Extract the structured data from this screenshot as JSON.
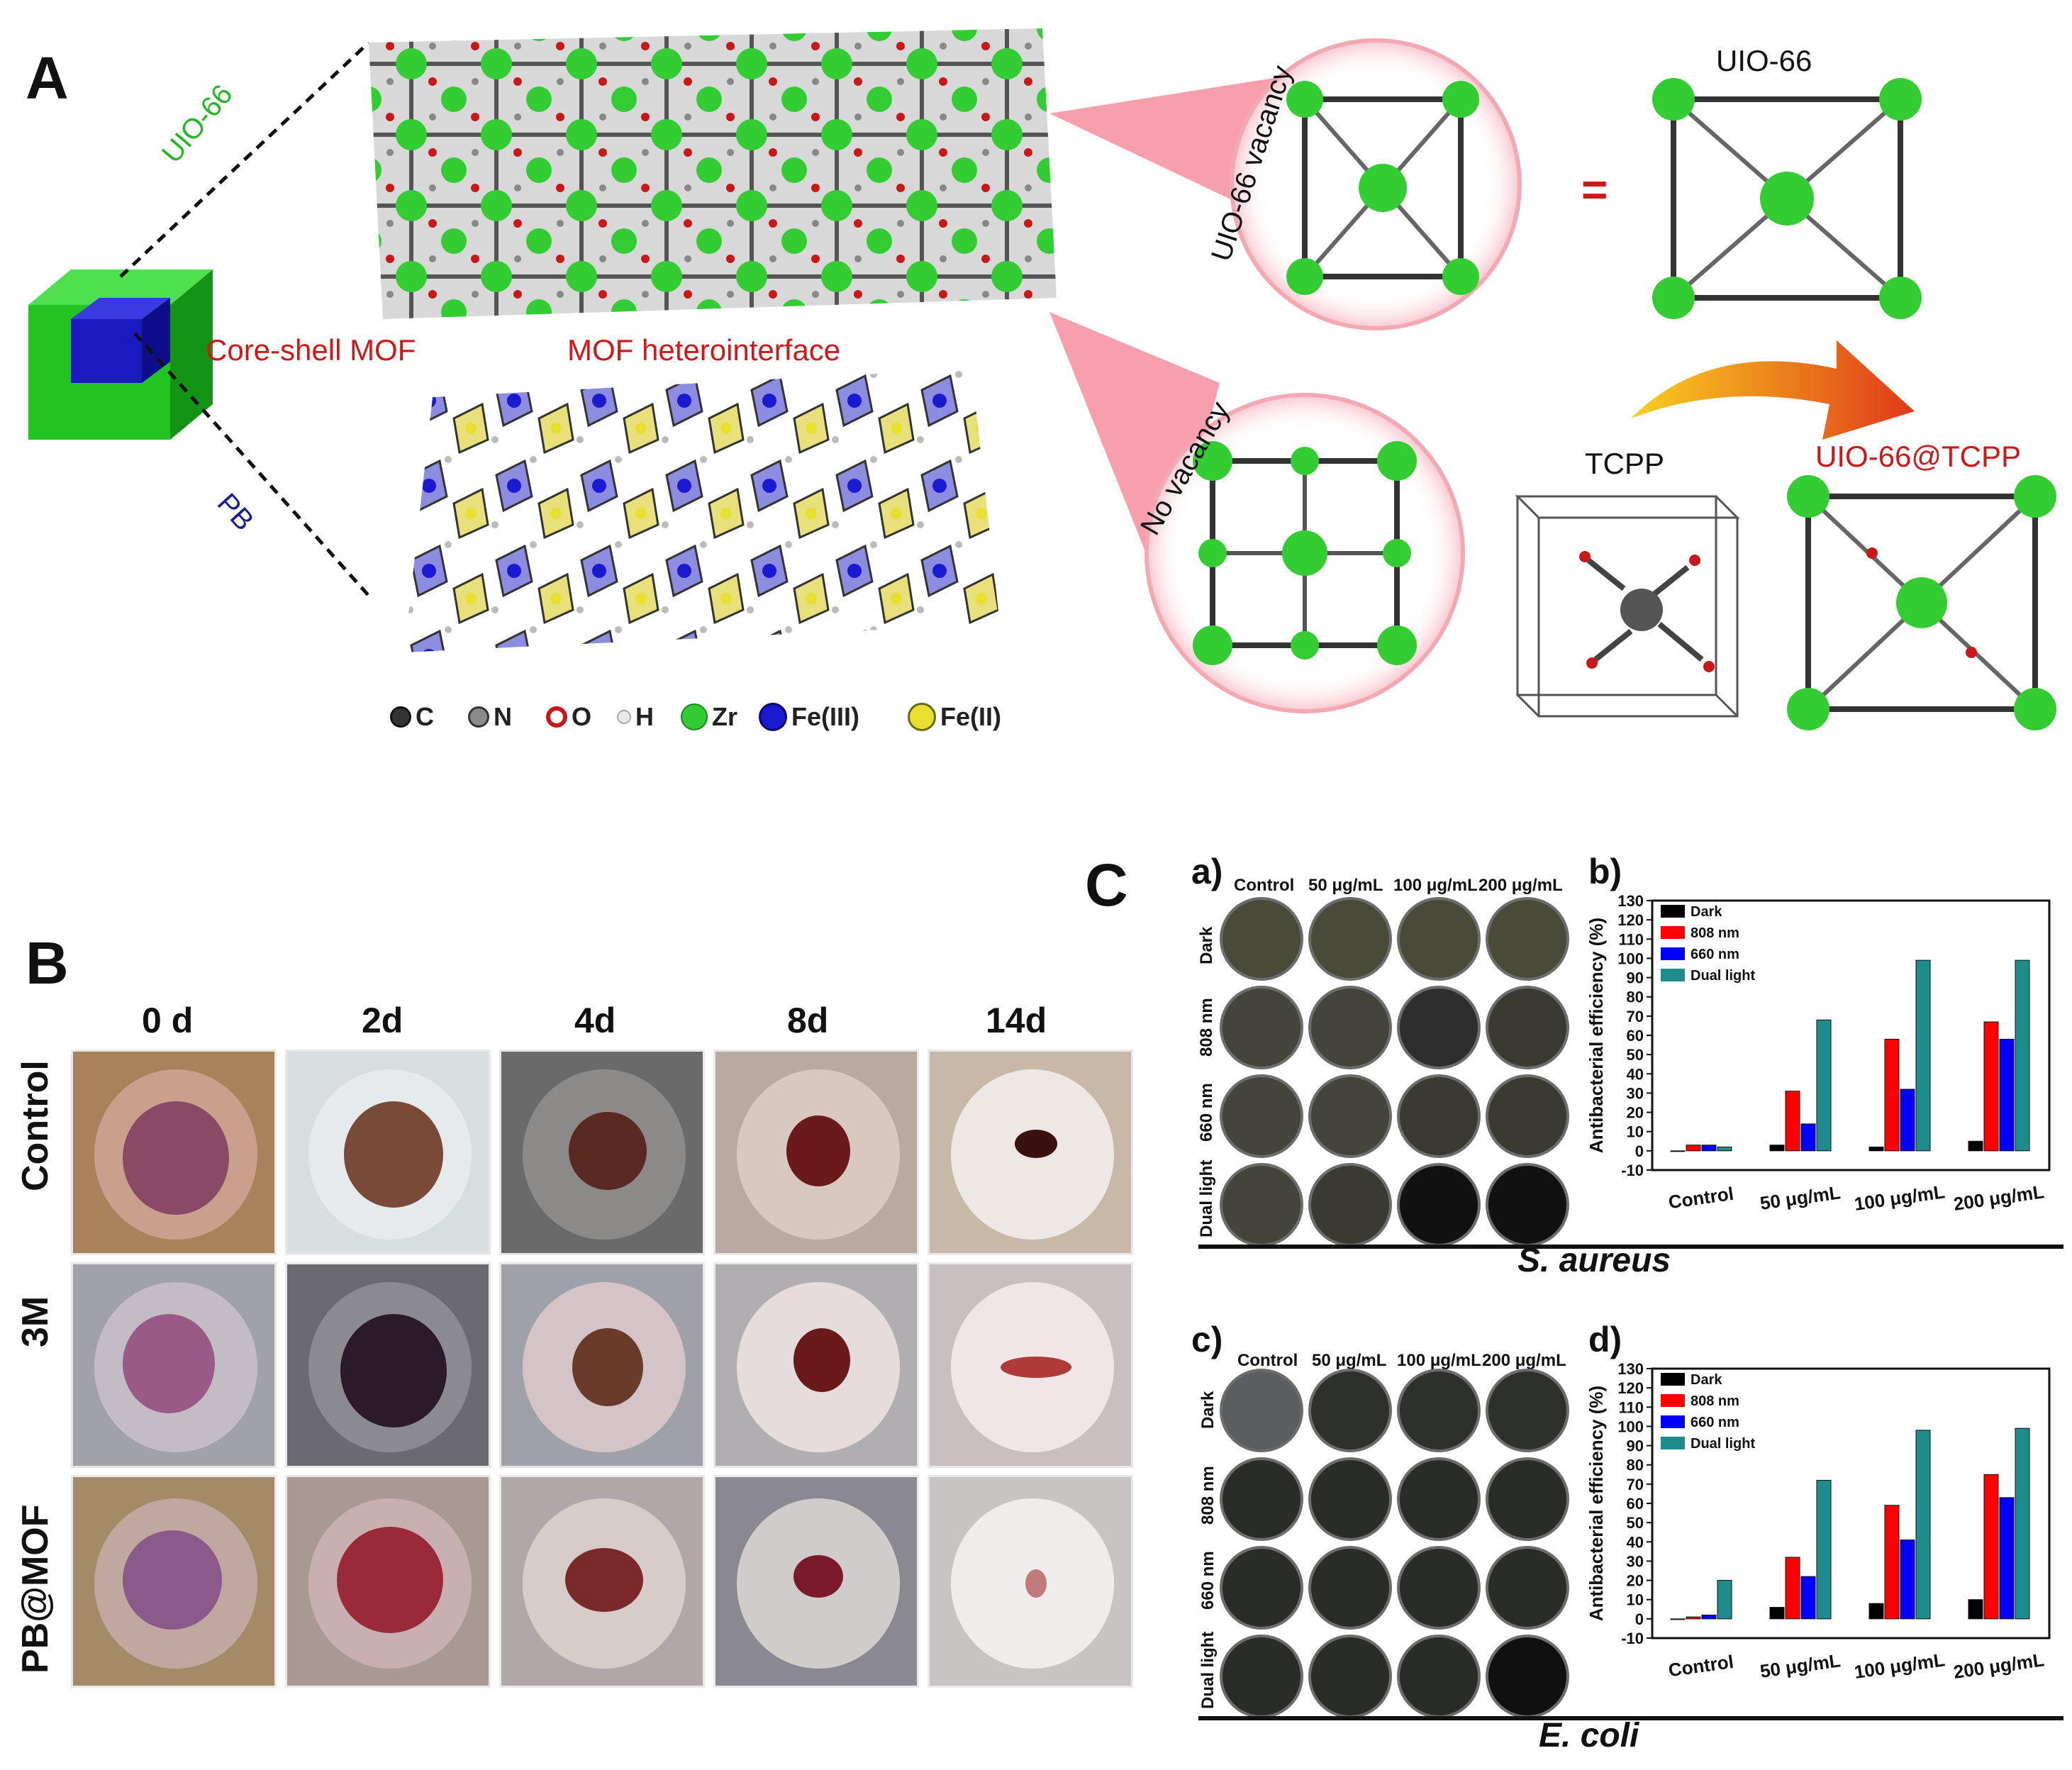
{
  "panelA": {
    "letter": "A",
    "uio66_side": "UIO-66",
    "pb_side": "PB",
    "core_shell": "Core-shell MOF",
    "heterointerface": "MOF heterointerface",
    "vacancy": "UIO-66 vacancy",
    "no_vacancy": "No vacancy",
    "equals": "=",
    "uio66_top": "UIO-66",
    "tcpp": "TCPP",
    "uio66_tcpp": "UIO-66@TCPP",
    "legend": [
      {
        "label": "C",
        "color": "#333333"
      },
      {
        "label": "N",
        "color": "#8a8a8a"
      },
      {
        "label": "O",
        "color": "#c81818"
      },
      {
        "label": "H",
        "color": "#e8e8e8"
      },
      {
        "label": "Zr",
        "color": "#33cc33"
      },
      {
        "label": "Fe(III)",
        "color": "#1a1ad0"
      },
      {
        "label": "Fe(II)",
        "color": "#e8e030"
      }
    ],
    "colors": {
      "shell": "#22c422",
      "core": "#1a1ac0",
      "zr_cluster": "#33cc33",
      "highlight": "#e8304a"
    }
  },
  "panelB": {
    "letter": "B",
    "days": [
      "0 d",
      "2d",
      "4d",
      "8d",
      "14d"
    ],
    "groups": [
      "Control",
      "3M",
      "PB@MOF"
    ]
  },
  "panelC": {
    "letter": "C",
    "sub_a": "a)",
    "sub_b": "b)",
    "sub_c": "c)",
    "sub_d": "d)",
    "plate_cols": [
      "Control",
      "50 μg/mL",
      "100 μg/mL",
      "200 μg/mL"
    ],
    "plate_rows": [
      "Dark",
      "808 nm",
      "660 nm",
      "Dual light"
    ],
    "s_aureus": "S. aureus",
    "e_coli": "E. coli"
  },
  "chart_data": [
    {
      "type": "bar",
      "title": "",
      "xlabel": "",
      "ylabel": "Antibacterial efficiency (%)",
      "ylim": [
        -10,
        130
      ],
      "yticks": [
        -10,
        0,
        10,
        20,
        30,
        40,
        50,
        60,
        70,
        80,
        90,
        100,
        110,
        120,
        130
      ],
      "categories": [
        "Control",
        "50 μg/mL",
        "100 μg/mL",
        "200 μg/mL"
      ],
      "series": [
        {
          "name": "Dark",
          "color": "#000000",
          "values": [
            0,
            3,
            2,
            5
          ]
        },
        {
          "name": "808 nm",
          "color": "#ff0000",
          "values": [
            3,
            31,
            58,
            67
          ]
        },
        {
          "name": "660 nm",
          "color": "#0000ff",
          "values": [
            3,
            14,
            32,
            58
          ]
        },
        {
          "name": "Dual light",
          "color": "#1e8c8c",
          "values": [
            2,
            68,
            99,
            99
          ]
        }
      ],
      "annotations": [
        "*",
        "*",
        "***",
        "***",
        "**",
        "***",
        "***",
        "***",
        "***"
      ],
      "legend_position": "top-left"
    },
    {
      "type": "bar",
      "title": "",
      "xlabel": "",
      "ylabel": "Antibacterial efficiency (%)",
      "ylim": [
        -10,
        130
      ],
      "yticks": [
        -10,
        0,
        10,
        20,
        30,
        40,
        50,
        60,
        70,
        80,
        90,
        100,
        110,
        120,
        130
      ],
      "categories": [
        "Control",
        "50 μg/mL",
        "100 μg/mL",
        "200 μg/mL"
      ],
      "series": [
        {
          "name": "Dark",
          "color": "#000000",
          "values": [
            0,
            6,
            8,
            10
          ]
        },
        {
          "name": "808 nm",
          "color": "#ff0000",
          "values": [
            1,
            32,
            59,
            75
          ]
        },
        {
          "name": "660 nm",
          "color": "#0000ff",
          "values": [
            2,
            22,
            41,
            63
          ]
        },
        {
          "name": "Dual light",
          "color": "#1e8c8c",
          "values": [
            20,
            72,
            98,
            99
          ]
        }
      ],
      "annotations": [
        "**",
        "***",
        "***",
        "***",
        "***",
        "***",
        "***",
        "***",
        "***",
        "***"
      ],
      "legend_position": "top-left"
    }
  ]
}
